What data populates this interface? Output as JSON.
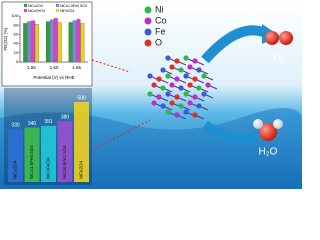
{
  "chart_data": [
    {
      "type": "bar",
      "y_label": "FE(O2) (%)",
      "x_label": "Potential (V) vs RHE",
      "categories": [
        "1.55",
        "1.60",
        "1.65"
      ],
      "series": [
        {
          "name": "NiCo2O4",
          "color": "#2e9e3a",
          "values": [
            84,
            88,
            86
          ]
        },
        {
          "name": "NiCo1.5Fe0.5O4",
          "color": "#7a86d8",
          "values": [
            88,
            92,
            90
          ]
        },
        {
          "name": "NiCoFeO4",
          "color": "#e040c8",
          "values": [
            90,
            95,
            93
          ]
        },
        {
          "name": "NiFe2O4",
          "color": "#e8d21e",
          "values": [
            82,
            86,
            84
          ]
        }
      ],
      "ylim": [
        0,
        100
      ],
      "yticks": [
        0,
        20,
        40,
        60,
        80,
        100
      ]
    },
    {
      "type": "bar",
      "categories": [
        "NiCo2O4",
        "NiCo1.5Fe0.5O4",
        "NiCoFeO4",
        "NiCo0.5Fe1.5O4",
        "NiFe2O4"
      ],
      "values": [
        330,
        340,
        351,
        380,
        500
      ],
      "colors": [
        "#2f6fd6",
        "#3fbf4a",
        "#22c8d8",
        "#9a4fd0",
        "#f0d020"
      ]
    }
  ],
  "elements": [
    {
      "label": "Ni",
      "color": "#2fb84a"
    },
    {
      "label": "Co",
      "color": "#c02ec0"
    },
    {
      "label": "Fe",
      "color": "#3a5bd8"
    },
    {
      "label": "O",
      "color": "#e0301e"
    }
  ],
  "products": {
    "oxygen": "O₂",
    "water": "H₂O"
  }
}
